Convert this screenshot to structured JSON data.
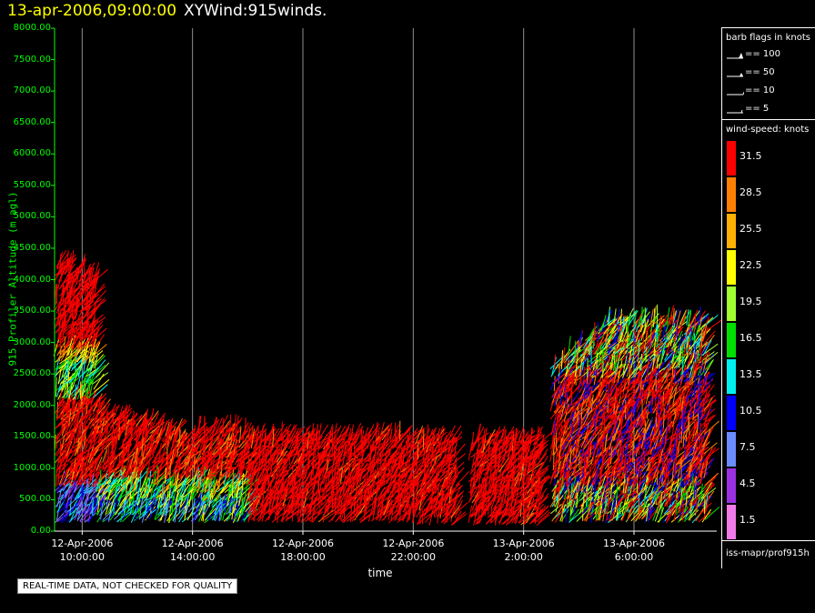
{
  "title": {
    "timestamp": "13-apr-2006,09:00:00",
    "name": "XYWind:915winds."
  },
  "notice": "REAL-TIME DATA, NOT CHECKED FOR QUALITY",
  "legend": {
    "barb_header": "barb flags in knots",
    "barbs": [
      {
        "kind": "pennant",
        "label": "== 100"
      },
      {
        "kind": "half-pennant",
        "label": "== 50"
      },
      {
        "kind": "full-barb",
        "label": "== 10"
      },
      {
        "kind": "half-barb",
        "label": "== 5"
      }
    ],
    "speed_header": "wind-speed: knots",
    "colorbar": [
      {
        "label": "31.5",
        "color": "#ff0000"
      },
      {
        "label": "28.5",
        "color": "#ff8000"
      },
      {
        "label": "25.5",
        "color": "#ffb000"
      },
      {
        "label": "22.5",
        "color": "#ffff00"
      },
      {
        "label": "19.5",
        "color": "#a0ff30"
      },
      {
        "label": "16.5",
        "color": "#00e000"
      },
      {
        "label": "13.5",
        "color": "#00f0f0"
      },
      {
        "label": "10.5",
        "color": "#0000ff"
      },
      {
        "label": "7.5",
        "color": "#6a8cff"
      },
      {
        "label": "4.5",
        "color": "#9a30e0"
      },
      {
        "label": "1.5",
        "color": "#f07ae8"
      }
    ],
    "source": "iss-mapr/prof915h"
  },
  "chart_data": {
    "type": "scatter",
    "subtype": "wind barb time-height plot",
    "xlabel": "time",
    "ylabel": "915 Profiler Altitude (m agl)",
    "ylim": [
      0,
      8000
    ],
    "yticks": [
      "0.00",
      "500.00",
      "1000.00",
      "1500.00",
      "2000.00",
      "2500.00",
      "3000.00",
      "3500.00",
      "4000.00",
      "4500.00",
      "5000.00",
      "5500.00",
      "6000.00",
      "6500.00",
      "7000.00",
      "7500.00",
      "8000.00"
    ],
    "x_range_hours": [
      "12-Apr-2006 09:00",
      "13-Apr-2006 09:00"
    ],
    "xticks": [
      {
        "date": "12-Apr-2006",
        "time": "10:00:00"
      },
      {
        "date": "12-Apr-2006",
        "time": "14:00:00"
      },
      {
        "date": "12-Apr-2006",
        "time": "18:00:00"
      },
      {
        "date": "12-Apr-2006",
        "time": "22:00:00"
      },
      {
        "date": "13-Apr-2006",
        "time": "2:00:00"
      },
      {
        "date": "13-Apr-2006",
        "time": "6:00:00"
      }
    ],
    "grid": "vertical at major time ticks",
    "data_regions": [
      {
        "t_start": "12-Apr-2006 09:00",
        "t_end": "12-Apr-2006 10:30",
        "alt_min": 200,
        "alt_max": 4400,
        "note": "red aloft, yellow/green/cyan band near 2000-2800 m, blue near surface"
      },
      {
        "t_start": "12-Apr-2006 10:30",
        "t_end": "12-Apr-2006 14:00",
        "alt_min": 150,
        "alt_max": 1900,
        "note": "red aloft, yellow/green/blue near surface"
      },
      {
        "t_start": "12-Apr-2006 14:00",
        "t_end": "12-Apr-2006 16:00",
        "alt_min": 300,
        "alt_max": 1650,
        "note": "mostly red, yellow/green near surface"
      },
      {
        "t_start": "12-Apr-2006 16:00",
        "t_end": "12-Apr-2006 23:30",
        "alt_min": 100,
        "alt_max": 1500,
        "note": "predominantly red > 31.5 knots"
      },
      {
        "t_start": "13-Apr-2006 00:00",
        "t_end": "13-Apr-2006 02:30",
        "alt_min": 100,
        "alt_max": 1550,
        "note": "red with sparse gaps"
      },
      {
        "t_start": "13-Apr-2006 03:00",
        "t_end": "13-Apr-2006 09:00",
        "alt_min": 100,
        "alt_max": 3450,
        "note": "mixed red, yellow, green, cyan and blue barbs"
      }
    ]
  }
}
